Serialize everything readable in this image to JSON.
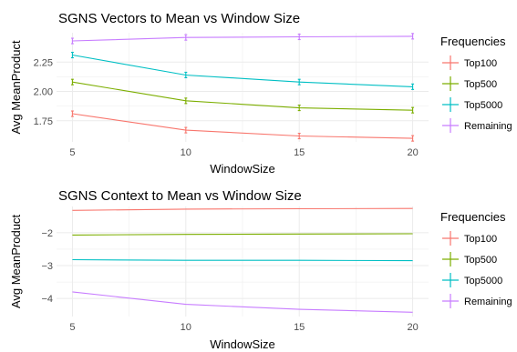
{
  "colors": {
    "Top100": "#F8766D",
    "Top500": "#7CAE00",
    "Top5000": "#00BFC4",
    "Remaining": "#C77CFF",
    "grid": "#EBEBEB",
    "text": "#4D4D4D",
    "title": "#000000"
  },
  "chart_data": [
    {
      "type": "line",
      "title": "SGNS Vectors to Mean vs Window Size",
      "xlabel": "WindowSize",
      "ylabel": "Avg MeanProduct",
      "x": [
        5,
        10,
        15,
        20
      ],
      "xticks": [
        "5",
        "10",
        "15",
        "20"
      ],
      "xlim": [
        4.3,
        20.7
      ],
      "yticks": [
        1.75,
        2.0,
        2.25
      ],
      "ytick_labels": [
        "1.75",
        "2.00",
        "2.25"
      ],
      "ylim": [
        1.57,
        2.5
      ],
      "grid": true,
      "error_bars": true,
      "legend": {
        "title": "Frequencies",
        "position": "right",
        "entries": [
          "Top100",
          "Top500",
          "Top5000",
          "Remaining"
        ]
      },
      "series": [
        {
          "name": "Top100",
          "values": [
            1.81,
            1.67,
            1.62,
            1.6
          ]
        },
        {
          "name": "Top500",
          "values": [
            2.08,
            1.92,
            1.86,
            1.84
          ]
        },
        {
          "name": "Top5000",
          "values": [
            2.31,
            2.14,
            2.08,
            2.04
          ]
        },
        {
          "name": "Remaining",
          "values": [
            2.43,
            2.46,
            2.465,
            2.47
          ]
        }
      ]
    },
    {
      "type": "line",
      "title": "SGNS Context to Mean vs Window Size",
      "xlabel": "WindowSize",
      "ylabel": "Avg MeanProduct",
      "x": [
        5,
        10,
        15,
        20
      ],
      "xticks": [
        "5",
        "10",
        "15",
        "20"
      ],
      "xlim": [
        4.3,
        20.7
      ],
      "yticks": [
        -4,
        -3,
        -2
      ],
      "ytick_labels": [
        "−4",
        "−3",
        "−2"
      ],
      "ylim": [
        -4.55,
        -1.2
      ],
      "grid": true,
      "error_bars": false,
      "legend": {
        "title": "Frequencies",
        "position": "right",
        "entries": [
          "Top100",
          "Top500",
          "Top5000",
          "Remaining"
        ]
      },
      "series": [
        {
          "name": "Top100",
          "values": [
            -1.32,
            -1.28,
            -1.27,
            -1.26
          ]
        },
        {
          "name": "Top500",
          "values": [
            -2.07,
            -2.05,
            -2.04,
            -2.03
          ]
        },
        {
          "name": "Top5000",
          "values": [
            -2.82,
            -2.84,
            -2.84,
            -2.85
          ]
        },
        {
          "name": "Remaining",
          "values": [
            -3.8,
            -4.18,
            -4.33,
            -4.42
          ]
        }
      ]
    }
  ]
}
